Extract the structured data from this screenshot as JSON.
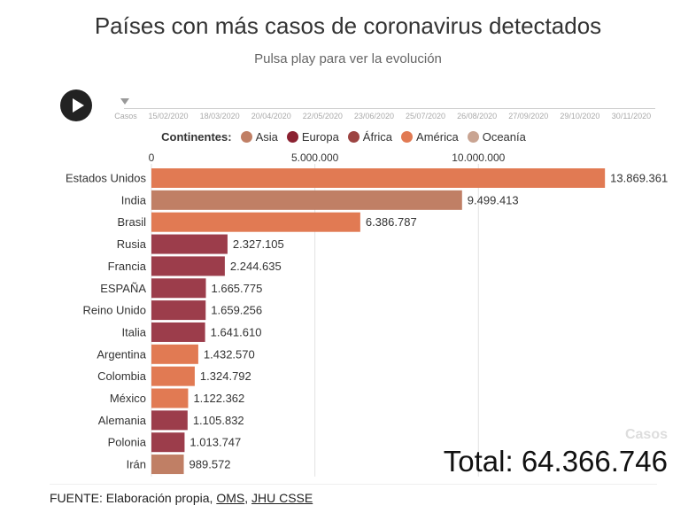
{
  "title": "Países con más casos de coronavirus detectados",
  "subtitle": "Pulsa play para ver la evolución",
  "timeline": {
    "start_label": "Casos",
    "dates": [
      "15/02/2020",
      "18/03/2020",
      "20/04/2020",
      "22/05/2020",
      "23/06/2020",
      "25/07/2020",
      "26/08/2020",
      "27/09/2020",
      "29/10/2020",
      "30/11/2020"
    ]
  },
  "legend": {
    "title": "Continentes:",
    "items": [
      {
        "label": "Asia",
        "color": "#c07f65"
      },
      {
        "label": "Europa",
        "color": "#8b2131"
      },
      {
        "label": "África",
        "color": "#9c4442"
      },
      {
        "label": "América",
        "color": "#e17a53"
      },
      {
        "label": "Oceanía",
        "color": "#c9a492"
      }
    ]
  },
  "chart_data": {
    "type": "bar",
    "orientation": "horizontal",
    "xlim": [
      0,
      14000000
    ],
    "x_ticks": [
      0,
      5000000,
      10000000
    ],
    "x_tick_labels": [
      "0",
      "5.000.000",
      "10.000.000"
    ],
    "grid": true,
    "categories": [
      "Estados Unidos",
      "India",
      "Brasil",
      "Rusia",
      "Francia",
      "ESPAÑA",
      "Reino Unido",
      "Italia",
      "Argentina",
      "Colombia",
      "México",
      "Alemania",
      "Polonia",
      "Irán"
    ],
    "values": [
      13869361,
      9499413,
      6386787,
      2327105,
      2244635,
      1665775,
      1659256,
      1641610,
      1432570,
      1324792,
      1122362,
      1105832,
      1013747,
      989572
    ],
    "value_labels": [
      "13.869.361",
      "9.499.413",
      "6.386.787",
      "2.327.105",
      "2.244.635",
      "1.665.775",
      "1.659.256",
      "1.641.610",
      "1.432.570",
      "1.324.792",
      "1.122.362",
      "1.105.832",
      "1.013.747",
      "989.572"
    ],
    "colors": [
      "#e17a53",
      "#c07f65",
      "#e17a53",
      "#9c3d4b",
      "#9c3d4b",
      "#9c3d4b",
      "#9c3d4b",
      "#9c3d4b",
      "#e17a53",
      "#e17a53",
      "#e17a53",
      "#9c3d4b",
      "#9c3d4b",
      "#c07f65"
    ]
  },
  "total": {
    "label": "Casos",
    "value": "Total: 64.366.746"
  },
  "footer": {
    "prefix": "FUENTE: Elaboración propia, ",
    "link1": "OMS",
    "sep": ", ",
    "link2": "JHU CSSE"
  }
}
